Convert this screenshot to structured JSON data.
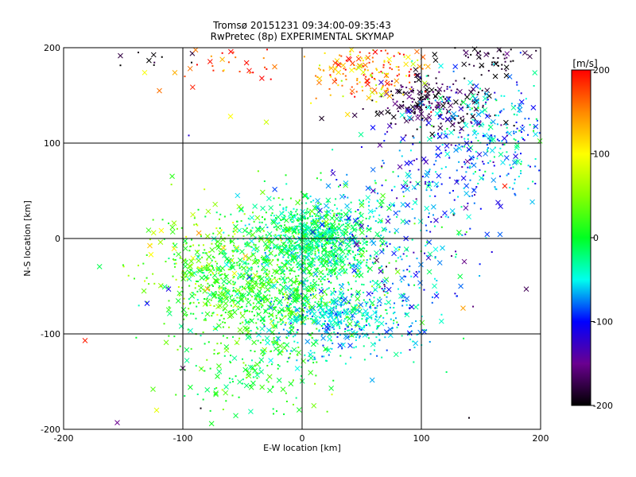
{
  "chart_data": {
    "type": "scatter",
    "title": "Tromsø 20151231 09:34:00-09:35:43",
    "subtitle": "RwPretec (8p) EXPERIMENTAL SKYMAP",
    "xlabel": "E-W location [km]",
    "ylabel": "N-S location [km]",
    "xlim": [
      -200,
      200
    ],
    "ylim": [
      -200,
      200
    ],
    "xticks": [
      "-200",
      "-100",
      "0",
      "100",
      "200"
    ],
    "yticks": [
      "-200",
      "-100",
      "0",
      "100",
      "200"
    ],
    "grid": true,
    "gridlines_x": [
      -100,
      0,
      100
    ],
    "gridlines_y": [
      -100,
      0,
      100
    ],
    "marker_styles": [
      "dot",
      "cross"
    ],
    "colorbar": {
      "label": "[m/s]",
      "range": [
        -200,
        200
      ],
      "ticks": [
        "200",
        "100",
        "0",
        "-100",
        "-200"
      ],
      "colormap": "rainbow: black (-200) → purple → blue (-100) → cyan → green (0) → yellow (100) → red (200)"
    },
    "clusters": [
      {
        "center": [
          10,
          0
        ],
        "spread": [
          25,
          20
        ],
        "count": 700,
        "value_mean": -20,
        "value_sd": 25
      },
      {
        "center": [
          -45,
          -55
        ],
        "spread": [
          35,
          30
        ],
        "count": 650,
        "value_mean": 15,
        "value_sd": 25
      },
      {
        "center": [
          30,
          -85
        ],
        "spread": [
          30,
          20
        ],
        "count": 450,
        "value_mean": -55,
        "value_sd": 25
      },
      {
        "center": [
          -5,
          -30
        ],
        "spread": [
          45,
          35
        ],
        "count": 400,
        "value_mean": 0,
        "value_sd": 30
      },
      {
        "center": [
          -85,
          -10
        ],
        "spread": [
          25,
          25
        ],
        "count": 120,
        "value_mean": 60,
        "value_sd": 35
      },
      {
        "center": [
          -40,
          -140
        ],
        "spread": [
          30,
          25
        ],
        "count": 150,
        "value_mean": 10,
        "value_sd": 25
      },
      {
        "center": [
          60,
          20
        ],
        "spread": [
          35,
          35
        ],
        "count": 200,
        "value_mean": -60,
        "value_sd": 45
      },
      {
        "center": [
          95,
          -40
        ],
        "spread": [
          30,
          40
        ],
        "count": 120,
        "value_mean": -80,
        "value_sd": 40
      },
      {
        "center": [
          110,
          140
        ],
        "spread": [
          25,
          15
        ],
        "count": 220,
        "value_mean": -180,
        "value_sd": 25
      },
      {
        "center": [
          55,
          175
        ],
        "spread": [
          25,
          15
        ],
        "count": 180,
        "value_mean": 150,
        "value_sd": 45
      },
      {
        "center": [
          160,
          115
        ],
        "spread": [
          30,
          30
        ],
        "count": 260,
        "value_mean": -60,
        "value_sd": 35
      },
      {
        "center": [
          120,
          80
        ],
        "spread": [
          35,
          35
        ],
        "count": 150,
        "value_mean": -90,
        "value_sd": 35
      },
      {
        "center": [
          165,
          190
        ],
        "spread": [
          20,
          8
        ],
        "count": 60,
        "value_mean": -190,
        "value_sd": 15
      },
      {
        "center": [
          -130,
          185
        ],
        "spread": [
          20,
          10
        ],
        "count": 10,
        "value_mean": -195,
        "value_sd": 10
      },
      {
        "center": [
          -50,
          180
        ],
        "spread": [
          40,
          15
        ],
        "count": 40,
        "value_mean": 170,
        "value_sd": 30
      }
    ],
    "notable_points": [
      {
        "x": -182,
        "y": -107,
        "value": 190,
        "marker": "cross"
      },
      {
        "x": -155,
        "y": -193,
        "value": -150,
        "marker": "cross"
      },
      {
        "x": -122,
        "y": -180,
        "value": 90,
        "marker": "cross"
      },
      {
        "x": -125,
        "y": -158,
        "value": 30,
        "marker": "cross"
      },
      {
        "x": -100,
        "y": -136,
        "value": -170,
        "marker": "cross"
      },
      {
        "x": -130,
        "y": -68,
        "value": -100,
        "marker": "cross"
      },
      {
        "x": -112,
        "y": -53,
        "value": -110,
        "marker": "cross"
      },
      {
        "x": 135,
        "y": -73,
        "value": 140,
        "marker": "cross"
      },
      {
        "x": 188,
        "y": -53,
        "value": -170,
        "marker": "cross"
      },
      {
        "x": 170,
        "y": 55,
        "value": 190,
        "marker": "cross"
      },
      {
        "x": -60,
        "y": 128,
        "value": 100,
        "marker": "cross"
      },
      {
        "x": -30,
        "y": 122,
        "value": 80,
        "marker": "cross"
      },
      {
        "x": 140,
        "y": -188,
        "value": -195,
        "marker": "dot"
      },
      {
        "x": -85,
        "y": -178,
        "value": -195,
        "marker": "dot"
      },
      {
        "x": -95,
        "y": 108,
        "value": -120,
        "marker": "dot"
      }
    ]
  }
}
